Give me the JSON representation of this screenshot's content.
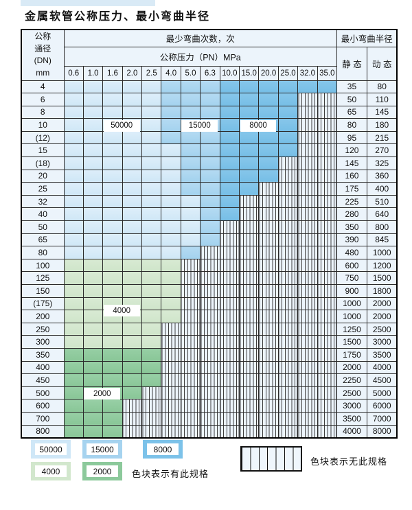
{
  "title": "金属软管公称压力、最小弯曲半径",
  "header": {
    "dn_label_lines": [
      "公称",
      "通径",
      "(DN)",
      "mm"
    ],
    "cycles_label": "最少弯曲次数，次",
    "pressure_label": "公称压力（PN）MPa",
    "pressure_columns": [
      "0.6",
      "1.0",
      "1.6",
      "2.0",
      "2.5",
      "4.0",
      "5.0",
      "6.3",
      "10.0",
      "15.0",
      "20.0",
      "25.0",
      "32.0",
      "35.0"
    ],
    "radius_label": "最小弯曲半径",
    "static_label": "静 态",
    "dynamic_label": "动 态"
  },
  "float_labels": [
    {
      "text": "50000",
      "row": 3,
      "col_start": 2,
      "col_span": 2
    },
    {
      "text": "15000",
      "row": 3,
      "col_start": 6,
      "col_span": 2
    },
    {
      "text": "8000",
      "row": 3,
      "col_start": 9,
      "col_span": 2
    },
    {
      "text": "4000",
      "row": 17.5,
      "col_start": 2,
      "col_span": 2
    },
    {
      "text": "2000",
      "row": 24,
      "col_start": 1,
      "col_span": 2
    }
  ],
  "rows": [
    {
      "dn": "4",
      "zone": "blue",
      "light_end": 4,
      "medium_end": 7,
      "end": 13,
      "static": "35",
      "dynamic": "80"
    },
    {
      "dn": "6",
      "zone": "blue",
      "light_end": 4,
      "medium_end": 7,
      "end": 11,
      "static": "50",
      "dynamic": "110"
    },
    {
      "dn": "8",
      "zone": "blue",
      "light_end": 4,
      "medium_end": 7,
      "end": 11,
      "static": "65",
      "dynamic": "145"
    },
    {
      "dn": "10",
      "zone": "blue",
      "light_end": 4,
      "medium_end": 7,
      "end": 11,
      "static": "80",
      "dynamic": "180"
    },
    {
      "dn": "(12)",
      "zone": "blue",
      "light_end": 4,
      "medium_end": 7,
      "end": 11,
      "static": "95",
      "dynamic": "215"
    },
    {
      "dn": "15",
      "zone": "blue",
      "light_end": 5,
      "medium_end": 7,
      "end": 11,
      "static": "120",
      "dynamic": "270"
    },
    {
      "dn": "(18)",
      "zone": "blue",
      "light_end": 5,
      "medium_end": 7,
      "end": 10,
      "static": "145",
      "dynamic": "325"
    },
    {
      "dn": "20",
      "zone": "blue",
      "light_end": 5,
      "medium_end": 7,
      "end": 10,
      "static": "160",
      "dynamic": "360"
    },
    {
      "dn": "25",
      "zone": "blue",
      "light_end": 5,
      "medium_end": 7,
      "end": 9,
      "static": "175",
      "dynamic": "400"
    },
    {
      "dn": "32",
      "zone": "blue",
      "light_end": 6,
      "medium_end": 7,
      "end": 8,
      "static": "225",
      "dynamic": "510"
    },
    {
      "dn": "40",
      "zone": "blue",
      "light_end": 6,
      "medium_end": 7,
      "end": 8,
      "static": "280",
      "dynamic": "640"
    },
    {
      "dn": "50",
      "zone": "blue",
      "light_end": 6,
      "medium_end": 7,
      "end": 7,
      "static": "350",
      "dynamic": "800"
    },
    {
      "dn": "65",
      "zone": "blue",
      "light_end": 6,
      "medium_end": 7,
      "end": 7,
      "static": "390",
      "dynamic": "845"
    },
    {
      "dn": "80",
      "zone": "blue",
      "light_end": 5,
      "medium_end": 6,
      "end": 6,
      "static": "480",
      "dynamic": "1000"
    },
    {
      "dn": "100",
      "zone": "green-light",
      "end": 5,
      "static": "600",
      "dynamic": "1200"
    },
    {
      "dn": "125",
      "zone": "green-light",
      "end": 5,
      "static": "750",
      "dynamic": "1500"
    },
    {
      "dn": "150",
      "zone": "green-light",
      "end": 5,
      "static": "900",
      "dynamic": "1800"
    },
    {
      "dn": "(175)",
      "zone": "green-light",
      "end": 5,
      "static": "1000",
      "dynamic": "2000"
    },
    {
      "dn": "200",
      "zone": "green-light",
      "end": 5,
      "static": "1000",
      "dynamic": "2000"
    },
    {
      "dn": "250",
      "zone": "green-light",
      "end": 4,
      "static": "1250",
      "dynamic": "2500"
    },
    {
      "dn": "300",
      "zone": "green-light",
      "end": 4,
      "static": "1500",
      "dynamic": "3000"
    },
    {
      "dn": "350",
      "zone": "green-medium",
      "end": 4,
      "static": "1750",
      "dynamic": "3500"
    },
    {
      "dn": "400",
      "zone": "green-medium",
      "end": 4,
      "static": "2000",
      "dynamic": "4000"
    },
    {
      "dn": "450",
      "zone": "green-medium",
      "end": 4,
      "static": "2250",
      "dynamic": "4500"
    },
    {
      "dn": "500",
      "zone": "green-medium",
      "end": 3,
      "static": "2500",
      "dynamic": "5000"
    },
    {
      "dn": "600",
      "zone": "green-medium",
      "end": 2,
      "static": "3000",
      "dynamic": "6000"
    },
    {
      "dn": "700",
      "zone": "green-medium",
      "end": 2,
      "static": "3500",
      "dynamic": "7000"
    },
    {
      "dn": "800",
      "zone": "green-medium",
      "end": 2,
      "static": "4000",
      "dynamic": "8000"
    }
  ],
  "legend": {
    "items": [
      {
        "value": "50000",
        "color": "#cfe7f7"
      },
      {
        "value": "15000",
        "color": "#a6d3ef"
      },
      {
        "value": "8000",
        "color": "#7cc2e9"
      },
      {
        "value": "4000",
        "color": "#d2e7cd"
      },
      {
        "value": "2000",
        "color": "#8cc99b"
      }
    ],
    "has_spec_label": "色块表示有此规格",
    "no_spec_label": "色块表示无此规格"
  }
}
